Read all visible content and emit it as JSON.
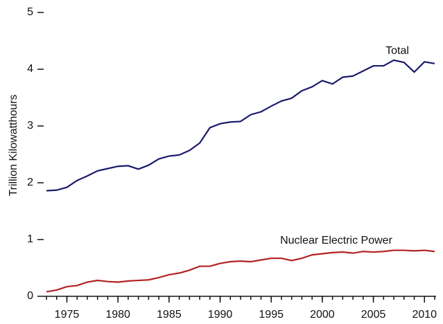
{
  "chart_data": {
    "type": "line",
    "y_label": "Trillion Kilowatthours",
    "x": [
      1973,
      1974,
      1975,
      1976,
      1977,
      1978,
      1979,
      1980,
      1981,
      1982,
      1983,
      1984,
      1985,
      1986,
      1987,
      1988,
      1989,
      1990,
      1991,
      1992,
      1993,
      1994,
      1995,
      1996,
      1997,
      1998,
      1999,
      2000,
      2001,
      2002,
      2003,
      2004,
      2005,
      2006,
      2007,
      2008,
      2009,
      2010,
      2011
    ],
    "series": [
      {
        "name": "Total",
        "color": "#1a1a6e",
        "values": [
          1.86,
          1.87,
          1.92,
          2.04,
          2.12,
          2.21,
          2.25,
          2.29,
          2.3,
          2.24,
          2.31,
          2.42,
          2.47,
          2.49,
          2.57,
          2.7,
          2.97,
          3.04,
          3.07,
          3.08,
          3.2,
          3.25,
          3.35,
          3.44,
          3.49,
          3.62,
          3.69,
          3.8,
          3.74,
          3.86,
          3.88,
          3.97,
          4.06,
          4.06,
          4.16,
          4.12,
          3.95,
          4.13,
          4.1
        ]
      },
      {
        "name": "Nuclear Electric Power",
        "color": "#b22222",
        "values": [
          0.08,
          0.11,
          0.17,
          0.19,
          0.25,
          0.28,
          0.26,
          0.25,
          0.27,
          0.28,
          0.29,
          0.33,
          0.38,
          0.41,
          0.46,
          0.53,
          0.53,
          0.58,
          0.61,
          0.62,
          0.61,
          0.64,
          0.67,
          0.67,
          0.63,
          0.67,
          0.73,
          0.75,
          0.77,
          0.78,
          0.76,
          0.79,
          0.78,
          0.79,
          0.81,
          0.81,
          0.8,
          0.81,
          0.79
        ]
      }
    ],
    "xlim": [
      1973,
      2011
    ],
    "xticks": [
      1975,
      1980,
      1985,
      1990,
      1995,
      2000,
      2005,
      2010
    ],
    "ylim": [
      0,
      5
    ],
    "yticks": [
      0,
      1,
      2,
      3,
      4,
      5
    ]
  }
}
